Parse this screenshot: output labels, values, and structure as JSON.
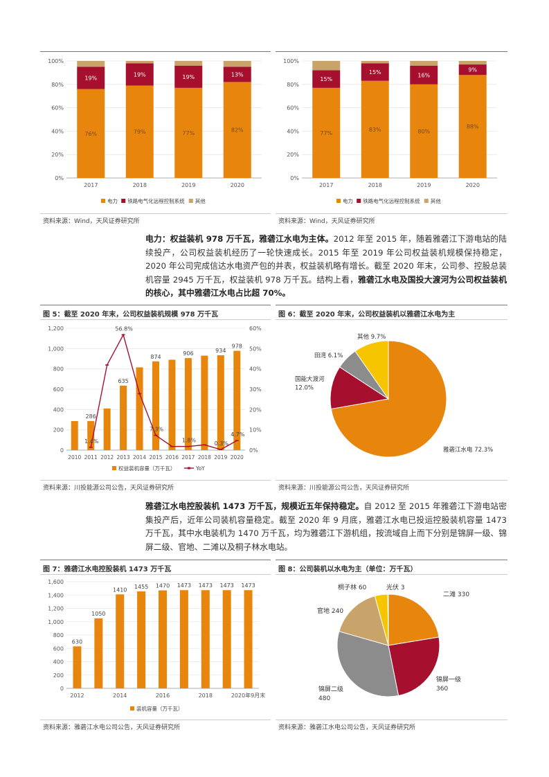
{
  "colors": {
    "orange": "#E8850C",
    "crimson": "#A6102E",
    "tan": "#C9A46A",
    "gray": "#8C8C8C",
    "yellow": "#F6C500",
    "line": "#A6102E"
  },
  "top_left_chart": {
    "chart_data": {
      "type": "bar",
      "stacked": true,
      "percent": true,
      "categories": [
        "2017",
        "2018",
        "2019",
        "2020"
      ],
      "series": [
        {
          "name": "电力",
          "values": [
            76,
            79,
            77,
            82
          ],
          "labels": [
            "76%",
            "79%",
            "77%",
            "82%"
          ]
        },
        {
          "name": "铁路电气化远程控制系统",
          "values": [
            19,
            19,
            19,
            13
          ],
          "labels": [
            "19%",
            "19%",
            "19%",
            "13%"
          ]
        },
        {
          "name": "其他",
          "values": [
            5,
            2,
            4,
            5
          ]
        }
      ],
      "yticks": [
        "0%",
        "20%",
        "40%",
        "60%",
        "80%",
        "100%"
      ],
      "ylim": [
        0,
        100
      ]
    },
    "source": "资料来源：Wind，天风证券研究所"
  },
  "top_right_chart": {
    "chart_data": {
      "type": "bar",
      "stacked": true,
      "percent": true,
      "categories": [
        "2017",
        "2018",
        "2019",
        "2020"
      ],
      "series": [
        {
          "name": "电力",
          "values": [
            77,
            83,
            80,
            88
          ],
          "labels": [
            "77%",
            "83%",
            "80%",
            "88%"
          ]
        },
        {
          "name": "铁路电气化远程控制系统",
          "values": [
            15,
            15,
            16,
            9
          ],
          "labels": [
            "15%",
            "15%",
            "16%",
            "9%"
          ]
        },
        {
          "name": "其他",
          "values": [
            8,
            2,
            4,
            3
          ]
        }
      ],
      "yticks": [
        "0%",
        "20%",
        "40%",
        "60%",
        "80%",
        "100%"
      ],
      "ylim": [
        0,
        100
      ]
    },
    "source": "资料来源：Wind，天风证券研究所"
  },
  "para1": {
    "bold_lead": "电力：权益装机 978 万千瓦，雅砻江水电为主体。",
    "text": "2012 年至 2015 年，随着雅砻江下游电站的陆续投产，公司权益装机经历了一轮快速成长。2015 年至 2019 年公司权益装机规模保持稳定，2020 年公司完成信达水电资产包的并表，权益装机略有增长。截至 2020 年末，公司参、控股总装机容量 2945 万千瓦，权益装机 978 万千瓦。结构上看，",
    "bold_tail": "雅砻江水电及国投大渡河为公司权益装机的核心，其中雅砻江水电占比超 70%。"
  },
  "fig5": {
    "label": "图 5：",
    "title": "截至 2020 年末，公司权益装机规模 978 万千瓦",
    "source": "资料来源：川投能源公司公告，天风证券研究所",
    "chart_data": {
      "type": "bar",
      "categories": [
        "2010",
        "2011",
        "2012",
        "2013",
        "2014",
        "2015",
        "2016",
        "2017",
        "2018",
        "2019",
        "2020"
      ],
      "series": [
        {
          "name": "权益装机容量（万千瓦）",
          "type": "bar",
          "axis": "left",
          "values": [
            286,
            286,
            410,
            635,
            815,
            874,
            890,
            906,
            930,
            934,
            978
          ]
        },
        {
          "name": "YoY",
          "type": "line",
          "axis": "right",
          "values": [
            null,
            1.4,
            41.9,
            56.8,
            27.8,
            7.3,
            1.8,
            1.8,
            2.6,
            0.3,
            4.7
          ]
        }
      ],
      "bar_labels": {
        "1": "286",
        "3": "635",
        "5": "874",
        "7": "906",
        "9": "934",
        "10": "978"
      },
      "line_labels": {
        "1": "1.4%",
        "3": "56.8%",
        "5": "7.3%",
        "7": "1.8%",
        "9": "0.3%",
        "10": "4.7%"
      },
      "yticks_left": [
        "0",
        "200",
        "400",
        "600",
        "800",
        "1,000",
        "1,200"
      ],
      "yticks_right": [
        "0%",
        "10%",
        "20%",
        "30%",
        "40%",
        "50%",
        "60%"
      ],
      "ylim_left": [
        0,
        1200
      ],
      "ylim_right": [
        0,
        60
      ],
      "legend": [
        "权益装机容量（万千瓦）",
        "YoY"
      ]
    }
  },
  "fig6": {
    "label": "图 6：",
    "title": "截至 2020 年末，公司权益装机以雅砻江水电为主",
    "source": "资料来源：川投能源公司公告，天风证券研究所",
    "chart_data": {
      "type": "pie",
      "slices": [
        {
          "name": "雅砻江水电",
          "value": 72.3,
          "label": "雅砻江水电 72.3%"
        },
        {
          "name": "国能大渡河",
          "value": 12.0,
          "label_l1": "国能大渡河",
          "label_l2": "12.0%"
        },
        {
          "name": "田湾",
          "value": 6.1,
          "label": "田湾 6.1%"
        },
        {
          "name": "其他",
          "value": 9.7,
          "label": "其他 9.7%"
        }
      ]
    }
  },
  "para2": {
    "bold_lead": "雅砻江水电控股装机 1473 万千瓦，规模近五年保持稳定。",
    "text": "自 2012 至 2015 年雅砻江下游电站密集投产后，近年公司装机容量稳定。截至 2020 年 9 月底，雅砻江水电已投运控股装机容量 1473 万千瓦，其中水电装机为 1470 万千瓦，均为雅砻江下游机组，按流域自上而下分别是锦屏一级、锦屏二级、官地、二滩以及桐子林水电站。"
  },
  "fig7": {
    "label": "图 7：",
    "title": "雅砻江水电控股装机 1473 万千瓦",
    "source": "资料来源：雅砻江水电公司公告，天风证券研究所",
    "chart_data": {
      "type": "bar",
      "categories": [
        "2012",
        "2013",
        "2014",
        "2015",
        "2016",
        "2017",
        "2018",
        "2019",
        "2020年9月末"
      ],
      "xtick_labels": [
        "2012",
        "",
        "2014",
        "",
        "2016",
        "",
        "2018",
        "",
        "2020年9月末"
      ],
      "values": [
        630,
        1050,
        1410,
        1455,
        1470,
        1473,
        1473,
        1473,
        1473
      ],
      "value_labels": [
        "630",
        "1050",
        "1410",
        "1455",
        "1470",
        "1473",
        "1473",
        "1473",
        "1473"
      ],
      "yticks": [
        "0",
        "200",
        "400",
        "600",
        "800",
        "1,000",
        "1,200",
        "1,400",
        "1,600"
      ],
      "ylim": [
        0,
        1600
      ],
      "legend": [
        "装机容量（万千瓦）"
      ]
    }
  },
  "fig8": {
    "label": "图 8：",
    "title": "公司装机以水电为主（单位：万千瓦）",
    "source": "资料来源：雅砻江水电公司公告，天风证券研究所",
    "chart_data": {
      "type": "pie",
      "slices": [
        {
          "name": "二滩",
          "value": 330,
          "label": "二滩 330"
        },
        {
          "name": "锦屏一级",
          "value": 360,
          "label_l1": "锦屏一级",
          "label_l2": "360"
        },
        {
          "name": "锦屏二级",
          "value": 480,
          "label_l1": "锦屏二级",
          "label_l2": "480"
        },
        {
          "name": "官地",
          "value": 240,
          "label": "官地 240"
        },
        {
          "name": "桐子林",
          "value": 60,
          "label": "桐子林 60"
        },
        {
          "name": "光伏",
          "value": 3,
          "label": "光伏 3"
        }
      ]
    }
  }
}
